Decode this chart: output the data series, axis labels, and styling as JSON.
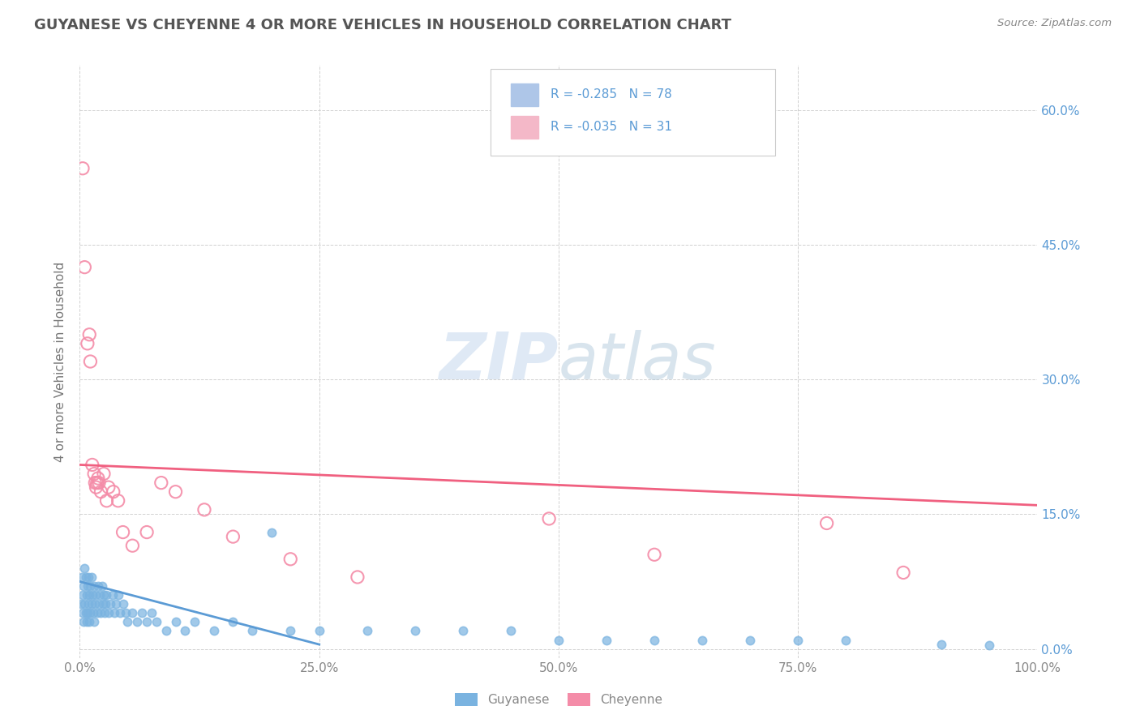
{
  "title": "GUYANESE VS CHEYENNE 4 OR MORE VEHICLES IN HOUSEHOLD CORRELATION CHART",
  "source": "Source: ZipAtlas.com",
  "ylabel": "4 or more Vehicles in Household",
  "xlim": [
    0.0,
    1.0
  ],
  "ylim": [
    -0.01,
    0.65
  ],
  "xticks": [
    0.0,
    0.25,
    0.5,
    0.75,
    1.0
  ],
  "xticklabels": [
    "0.0%",
    "25.0%",
    "50.0%",
    "75.0%",
    "100.0%"
  ],
  "yticks": [
    0.0,
    0.15,
    0.3,
    0.45,
    0.6
  ],
  "yticklabels": [
    "",
    "15.0%",
    "30.0%",
    "45.0%",
    "60.0%"
  ],
  "ytick_right_labels": [
    "0.0%",
    "15.0%",
    "30.0%",
    "45.0%",
    "60.0%"
  ],
  "legend_label1": "Guyanese",
  "legend_label2": "Cheyenne",
  "guyanese_color": "#7ab3e0",
  "cheyenne_color": "#f48ca8",
  "legend_box_color": "#aec6e8",
  "legend_box_color2": "#f4b8c8",
  "legend_text_color": "#5b9bd5",
  "right_tick_color": "#5b9bd5",
  "left_tick_color": "#aaaaaa",
  "guyanese_scatter_x": [
    0.001,
    0.002,
    0.003,
    0.003,
    0.004,
    0.004,
    0.005,
    0.005,
    0.006,
    0.006,
    0.007,
    0.007,
    0.008,
    0.008,
    0.009,
    0.009,
    0.01,
    0.01,
    0.011,
    0.011,
    0.012,
    0.012,
    0.013,
    0.014,
    0.015,
    0.015,
    0.016,
    0.017,
    0.018,
    0.019,
    0.02,
    0.021,
    0.022,
    0.023,
    0.024,
    0.025,
    0.026,
    0.027,
    0.028,
    0.03,
    0.032,
    0.034,
    0.036,
    0.038,
    0.04,
    0.042,
    0.045,
    0.048,
    0.05,
    0.055,
    0.06,
    0.065,
    0.07,
    0.075,
    0.08,
    0.09,
    0.1,
    0.11,
    0.12,
    0.14,
    0.16,
    0.18,
    0.2,
    0.22,
    0.25,
    0.3,
    0.35,
    0.4,
    0.45,
    0.5,
    0.55,
    0.6,
    0.65,
    0.7,
    0.75,
    0.8,
    0.9,
    0.95
  ],
  "guyanese_scatter_y": [
    0.05,
    0.08,
    0.06,
    0.04,
    0.07,
    0.03,
    0.09,
    0.05,
    0.08,
    0.04,
    0.06,
    0.03,
    0.07,
    0.04,
    0.05,
    0.08,
    0.06,
    0.03,
    0.07,
    0.04,
    0.05,
    0.08,
    0.06,
    0.04,
    0.07,
    0.03,
    0.05,
    0.06,
    0.04,
    0.07,
    0.05,
    0.06,
    0.04,
    0.07,
    0.05,
    0.06,
    0.04,
    0.05,
    0.06,
    0.04,
    0.05,
    0.06,
    0.04,
    0.05,
    0.06,
    0.04,
    0.05,
    0.04,
    0.03,
    0.04,
    0.03,
    0.04,
    0.03,
    0.04,
    0.03,
    0.02,
    0.03,
    0.02,
    0.03,
    0.02,
    0.03,
    0.02,
    0.13,
    0.02,
    0.02,
    0.02,
    0.02,
    0.02,
    0.02,
    0.01,
    0.01,
    0.01,
    0.01,
    0.01,
    0.01,
    0.01,
    0.005,
    0.004
  ],
  "cheyenne_scatter_x": [
    0.003,
    0.005,
    0.008,
    0.01,
    0.011,
    0.013,
    0.015,
    0.016,
    0.017,
    0.018,
    0.019,
    0.02,
    0.022,
    0.025,
    0.028,
    0.03,
    0.035,
    0.04,
    0.045,
    0.055,
    0.07,
    0.085,
    0.1,
    0.13,
    0.16,
    0.22,
    0.29,
    0.49,
    0.6,
    0.78,
    0.86
  ],
  "cheyenne_scatter_y": [
    0.535,
    0.425,
    0.34,
    0.35,
    0.32,
    0.205,
    0.195,
    0.185,
    0.18,
    0.185,
    0.19,
    0.185,
    0.175,
    0.195,
    0.165,
    0.18,
    0.175,
    0.165,
    0.13,
    0.115,
    0.13,
    0.185,
    0.175,
    0.155,
    0.125,
    0.1,
    0.08,
    0.145,
    0.105,
    0.14,
    0.085
  ],
  "guyanese_trend_x": [
    0.0,
    0.25
  ],
  "guyanese_trend_y": [
    0.075,
    0.005
  ],
  "cheyenne_trend_x": [
    0.0,
    1.0
  ],
  "cheyenne_trend_y": [
    0.205,
    0.16
  ],
  "watermark": "ZIPatlas",
  "background_color": "#ffffff",
  "grid_color": "#cccccc",
  "title_color": "#555555"
}
